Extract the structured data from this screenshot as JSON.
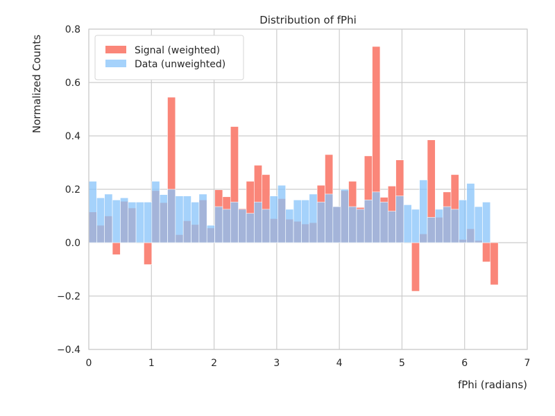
{
  "chart_data": {
    "type": "bar",
    "title": "Distribution of fPhi",
    "xlabel": "fPhi (radians)",
    "ylabel": "Normalized Counts",
    "xlim": [
      0,
      7
    ],
    "ylim": [
      -0.4,
      0.8
    ],
    "xticks": [
      "0",
      "1",
      "2",
      "3",
      "4",
      "5",
      "6",
      "7"
    ],
    "yticks": [
      "−0.4",
      "−0.2",
      "0.0",
      "0.2",
      "0.4",
      "0.6",
      "0.8"
    ],
    "xtick_values": [
      0,
      1,
      2,
      3,
      4,
      5,
      6,
      7
    ],
    "ytick_values": [
      -0.4,
      -0.2,
      0.0,
      0.2,
      0.4,
      0.6,
      0.8
    ],
    "grid": true,
    "legend_position": "top-left",
    "bin_width": 0.1257,
    "bin_start": 0,
    "series": [
      {
        "name": "Signal (weighted)",
        "color": "#fa8072",
        "values": [
          0.115,
          0.065,
          0.1,
          -0.045,
          0.155,
          0.13,
          0.0,
          -0.082,
          0.195,
          0.15,
          0.545,
          0.03,
          0.082,
          0.068,
          0.16,
          0.055,
          0.198,
          0.172,
          0.435,
          0.128,
          0.23,
          0.29,
          0.255,
          0.09,
          0.165,
          0.088,
          0.08,
          0.07,
          0.075,
          0.215,
          0.33,
          0.135,
          0.195,
          0.23,
          0.132,
          0.325,
          0.735,
          0.17,
          0.212,
          0.31,
          0.0,
          -0.182,
          0.033,
          0.385,
          0.095,
          0.19,
          0.255,
          0.012,
          0.052,
          0.008,
          -0.072,
          -0.158
        ]
      },
      {
        "name": "Data (unweighted)",
        "color": "#87c3fa",
        "values": [
          0.23,
          0.168,
          0.182,
          0.16,
          0.168,
          0.152,
          0.152,
          0.152,
          0.23,
          0.18,
          0.2,
          0.175,
          0.175,
          0.152,
          0.182,
          0.065,
          0.135,
          0.125,
          0.152,
          0.125,
          0.11,
          0.152,
          0.125,
          0.175,
          0.215,
          0.125,
          0.16,
          0.16,
          0.182,
          0.152,
          0.182,
          0.135,
          0.2,
          0.135,
          0.125,
          0.16,
          0.19,
          0.152,
          0.118,
          0.175,
          0.142,
          0.125,
          0.235,
          0.095,
          0.125,
          0.135,
          0.125,
          0.16,
          0.222,
          0.135,
          0.152,
          0.0
        ]
      }
    ]
  }
}
